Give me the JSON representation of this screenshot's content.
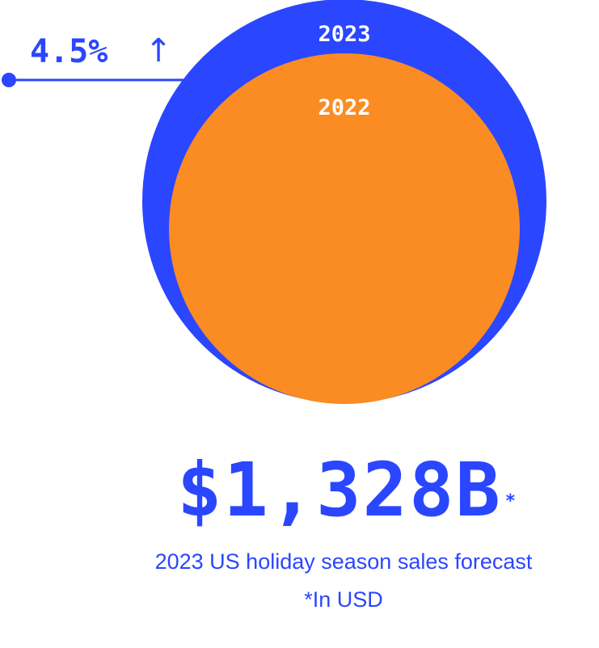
{
  "chart_data": {
    "type": "bubble",
    "title": "",
    "series": [
      {
        "label": "2023",
        "color": "#2b46ff"
      },
      {
        "label": "2022",
        "color": "#fa8c23"
      }
    ],
    "growth": {
      "label": "4.5%",
      "arrow": "↑",
      "direction": "up"
    }
  },
  "headline": {
    "value": "$1,328B",
    "footnote_mark": "*"
  },
  "caption": {
    "description": "2023 US holiday season sales forecast",
    "footnote": "*In USD"
  }
}
